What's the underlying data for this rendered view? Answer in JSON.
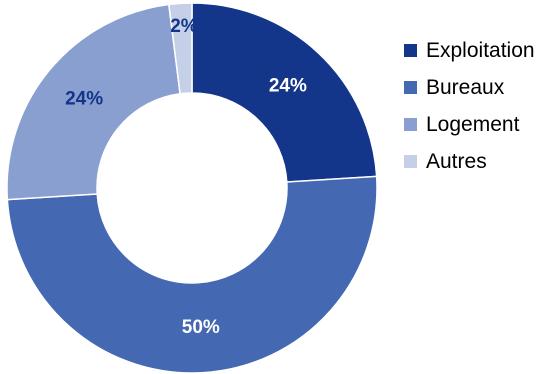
{
  "chart_data": {
    "type": "donut",
    "title": "",
    "categories": [
      "Exploitation",
      "Bureaux",
      "Logement",
      "Autres"
    ],
    "values": [
      24,
      50,
      24,
      2
    ],
    "labels": [
      "24%",
      "50%",
      "24%",
      "2%"
    ],
    "colors": [
      "#13358a",
      "#4469b2",
      "#889fd0",
      "#c5d0e8"
    ],
    "label_colors": [
      "#ffffff",
      "#ffffff",
      "#13358a",
      "#13358a"
    ],
    "legend_position": "right"
  }
}
